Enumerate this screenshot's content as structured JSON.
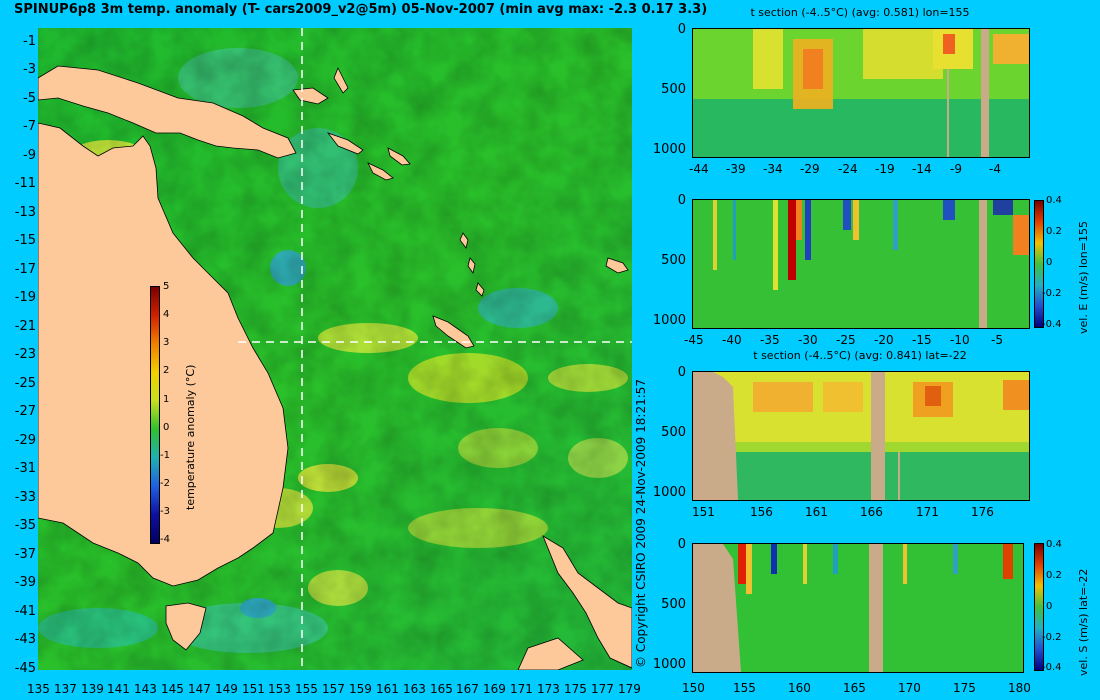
{
  "title": "SPINUP6p8 3m temp. anomaly (T- cars2009_v2@5m) 05-Nov-2007 (min avg max: -2.3 0.17 3.3)",
  "copyright": "© Copyright CSIRO 2009   24-Nov-2009 18:21:57",
  "map": {
    "lat_ticks": [
      "-1",
      "-3",
      "-5",
      "-7",
      "-9",
      "-11",
      "-13",
      "-15",
      "-17",
      "-19",
      "-21",
      "-23",
      "-25",
      "-27",
      "-29",
      "-31",
      "-33",
      "-35",
      "-37",
      "-39",
      "-41",
      "-43",
      "-45"
    ],
    "lon_ticks": [
      "135",
      "137",
      "139",
      "141",
      "143",
      "145",
      "147",
      "149",
      "151",
      "153",
      "155",
      "157",
      "159",
      "161",
      "163",
      "165",
      "167",
      "169",
      "171",
      "173",
      "175",
      "177",
      "179"
    ],
    "colorbar": {
      "label": "temperature anomaly (°C)",
      "ticks": [
        "5",
        "4",
        "3",
        "2",
        "1",
        "0",
        "-1",
        "-2",
        "-3",
        "-4"
      ]
    }
  },
  "panels": [
    {
      "title": "t section (-4..5°C) (avg: 0.581) lon=155",
      "x_ticks": [
        "-44",
        "-39",
        "-34",
        "-29",
        "-24",
        "-19",
        "-14",
        "-9",
        "-4"
      ],
      "y_ticks": [
        "0",
        "500",
        "1000"
      ]
    },
    {
      "title": "",
      "x_ticks": [
        "-45",
        "-40",
        "-35",
        "-30",
        "-25",
        "-20",
        "-15",
        "-10",
        "-5"
      ],
      "y_ticks": [
        "0",
        "500",
        "1000"
      ],
      "colorbar": {
        "label": "vel. E (m/s) lon=155",
        "ticks": [
          "0.4",
          "0.2",
          "0",
          "-0.2",
          "-0.4"
        ]
      }
    },
    {
      "title": "t section (-4..5°C) (avg: 0.841) lat=-22",
      "x_ticks": [
        "151",
        "156",
        "161",
        "166",
        "171",
        "176"
      ],
      "y_ticks": [
        "0",
        "500",
        "1000"
      ]
    },
    {
      "title": "",
      "x_ticks": [
        "150",
        "155",
        "160",
        "165",
        "170",
        "175",
        "180"
      ],
      "y_ticks": [
        "0",
        "500",
        "1000"
      ],
      "colorbar": {
        "label": "vel. S (m/s) lat=-22",
        "ticks": [
          "0.4",
          "0.2",
          "0",
          "-0.2",
          "-0.4"
        ]
      }
    }
  ],
  "colors": {
    "background": "#00ccff",
    "land": "#fdc99a",
    "section_land": "#c9ab8a",
    "ocean_base": "#22bb22"
  }
}
